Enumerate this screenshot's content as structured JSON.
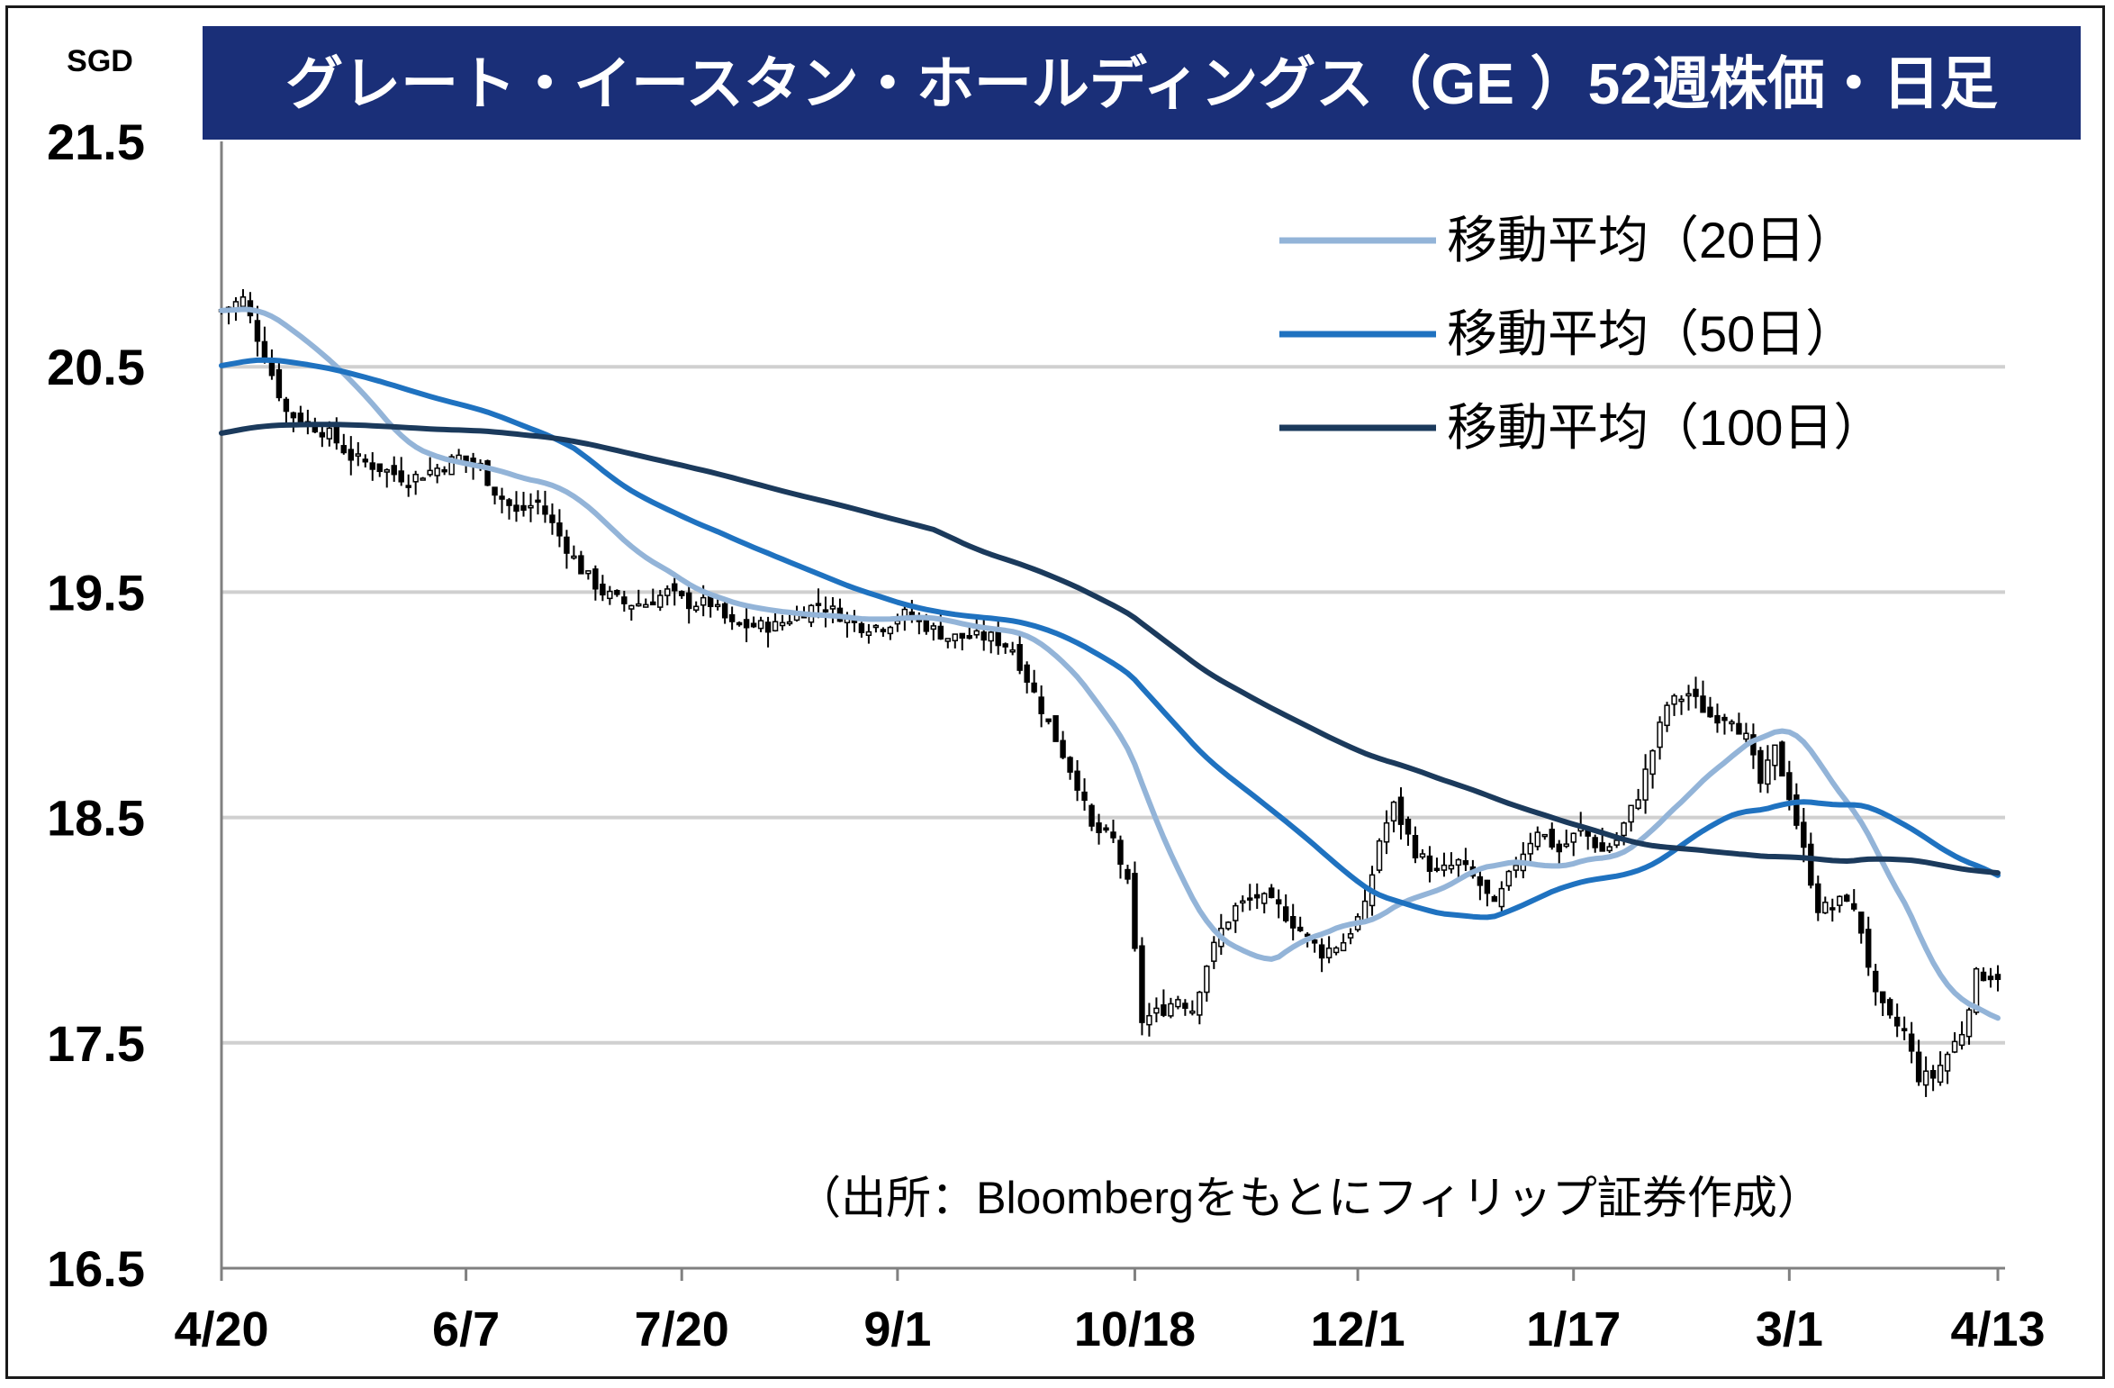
{
  "chart_data": {
    "type": "candlestick",
    "title": "グレート・イースタン・ホールディングス（GE ）52週株価・日足",
    "unit_label": "SGD",
    "ylim": [
      16.5,
      21.5
    ],
    "y_ticks": [
      "21.5",
      "20.5",
      "19.5",
      "18.5",
      "17.5",
      "16.5"
    ],
    "y_tick_values": [
      21.5,
      20.5,
      19.5,
      18.5,
      17.5,
      16.5
    ],
    "x_tick_labels": [
      "4/20",
      "6/7",
      "7/20",
      "9/1",
      "10/18",
      "12/1",
      "1/17",
      "3/1",
      "4/13"
    ],
    "x_tick_index": [
      0,
      34,
      64,
      94,
      127,
      158,
      188,
      218,
      247
    ],
    "days": 248,
    "grid": "horizontal",
    "legend_placement": "top-right",
    "source_note": "（出所：Bloombergをもとにフィリップ証券作成）",
    "close_anchors": [
      [
        0,
        20.75
      ],
      [
        3,
        20.8
      ],
      [
        6,
        20.55
      ],
      [
        9,
        20.3
      ],
      [
        12,
        20.25
      ],
      [
        15,
        20.2
      ],
      [
        18,
        20.1
      ],
      [
        22,
        20.05
      ],
      [
        26,
        20.0
      ],
      [
        30,
        20.05
      ],
      [
        33,
        20.1
      ],
      [
        36,
        20.05
      ],
      [
        38,
        19.95
      ],
      [
        41,
        19.85
      ],
      [
        44,
        19.9
      ],
      [
        47,
        19.75
      ],
      [
        50,
        19.6
      ],
      [
        53,
        19.5
      ],
      [
        56,
        19.45
      ],
      [
        59,
        19.45
      ],
      [
        62,
        19.5
      ],
      [
        65,
        19.45
      ],
      [
        68,
        19.45
      ],
      [
        71,
        19.35
      ],
      [
        74,
        19.35
      ],
      [
        77,
        19.35
      ],
      [
        80,
        19.4
      ],
      [
        83,
        19.45
      ],
      [
        86,
        19.4
      ],
      [
        89,
        19.35
      ],
      [
        92,
        19.35
      ],
      [
        95,
        19.4
      ],
      [
        98,
        19.35
      ],
      [
        101,
        19.3
      ],
      [
        104,
        19.3
      ],
      [
        107,
        19.3
      ],
      [
        110,
        19.25
      ],
      [
        113,
        19.05
      ],
      [
        116,
        18.85
      ],
      [
        119,
        18.65
      ],
      [
        121,
        18.45
      ],
      [
        124,
        18.4
      ],
      [
        126,
        18.2
      ],
      [
        128,
        17.6
      ],
      [
        131,
        17.65
      ],
      [
        133,
        17.7
      ],
      [
        135,
        17.65
      ],
      [
        137,
        17.85
      ],
      [
        139,
        18.0
      ],
      [
        141,
        18.1
      ],
      [
        144,
        18.15
      ],
      [
        147,
        18.1
      ],
      [
        150,
        18.0
      ],
      [
        153,
        17.9
      ],
      [
        156,
        17.95
      ],
      [
        159,
        18.1
      ],
      [
        161,
        18.4
      ],
      [
        163,
        18.55
      ],
      [
        166,
        18.35
      ],
      [
        169,
        18.25
      ],
      [
        172,
        18.3
      ],
      [
        175,
        18.2
      ],
      [
        177,
        18.1
      ],
      [
        180,
        18.3
      ],
      [
        183,
        18.45
      ],
      [
        186,
        18.35
      ],
      [
        189,
        18.45
      ],
      [
        192,
        18.35
      ],
      [
        194,
        18.4
      ],
      [
        197,
        18.6
      ],
      [
        199,
        18.8
      ],
      [
        201,
        19.0
      ],
      [
        204,
        19.05
      ],
      [
        207,
        18.95
      ],
      [
        210,
        18.95
      ],
      [
        212,
        18.85
      ],
      [
        214,
        18.65
      ],
      [
        216,
        18.8
      ],
      [
        218,
        18.6
      ],
      [
        220,
        18.35
      ],
      [
        222,
        18.1
      ],
      [
        224,
        18.1
      ],
      [
        226,
        18.15
      ],
      [
        228,
        18.0
      ],
      [
        230,
        17.7
      ],
      [
        232,
        17.6
      ],
      [
        234,
        17.55
      ],
      [
        236,
        17.35
      ],
      [
        238,
        17.35
      ],
      [
        240,
        17.45
      ],
      [
        242,
        17.55
      ],
      [
        244,
        17.8
      ],
      [
        246,
        17.8
      ],
      [
        247,
        17.8
      ]
    ],
    "series": [
      {
        "name": "移動平均（20日）",
        "color": "#93b4d8",
        "period": 20
      },
      {
        "name": "移動平均（50日）",
        "color": "#1f72c0",
        "period": 50
      },
      {
        "name": "移動平均（100日）",
        "color": "#1b3a5c",
        "period": 100
      }
    ],
    "ma_start_values": [
      20.75,
      20.5,
      20.2
    ]
  },
  "colors": {
    "title_bar": "#1a2f78",
    "title_text": "#ffffff",
    "grid": "#d0d0d0",
    "axis": "#808080",
    "candle_up_fill": "#ffffff",
    "candle_down_fill": "#000000",
    "candle_stroke": "#000000"
  }
}
